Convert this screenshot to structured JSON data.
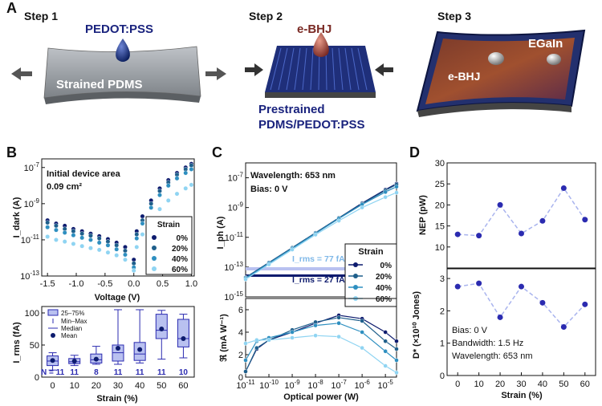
{
  "panel_a": {
    "label": "A",
    "step1": {
      "title": "Step 1",
      "material": "PEDOT:PSS",
      "substrate": "Strained PDMS"
    },
    "step2": {
      "title": "Step 2",
      "material": "e-BHJ",
      "substrate_l1": "Prestrained",
      "substrate_l2": "PDMS/PEDOT:PSS"
    },
    "step3": {
      "title": "Step 3",
      "contact": "EGaIn",
      "layer": "e-BHJ"
    }
  },
  "colors": {
    "s0": "#0d1b6e",
    "s20": "#1f5f8b",
    "s40": "#2e8fc0",
    "s60": "#8fd4f2",
    "accent": "#2b2bb0",
    "box": "#b9c1f0"
  },
  "chart_data": [
    {
      "panel": "B-top",
      "type": "scatter",
      "title": "Initial device area",
      "title2": "0.09 cm²",
      "xlabel": "Voltage (V)",
      "ylabel": "I_dark (A)",
      "yscale": "log",
      "xlim": [
        -1.6,
        1.05
      ],
      "ylim": [
        1e-13,
        3e-07
      ],
      "xticks": [
        "-1.5",
        "-1.0",
        "-0.5",
        "0.0",
        "0.5",
        "1.0"
      ],
      "yticks": [
        "10^-13",
        "10^-11",
        "10^-9",
        "10^-7"
      ],
      "legend_title": "Strain",
      "series": [
        {
          "name": "0%",
          "x": [
            -1.5,
            -1.35,
            -1.2,
            -1.05,
            -0.9,
            -0.75,
            -0.6,
            -0.45,
            -0.3,
            -0.15,
            0.0,
            0.05,
            0.15,
            0.3,
            0.45,
            0.6,
            0.75,
            0.9,
            1.0
          ],
          "y": [
            1.2e-10,
            8e-11,
            6e-11,
            4e-11,
            3e-11,
            2.2e-11,
            1.6e-11,
            1.1e-11,
            7e-12,
            4e-12,
            8e-13,
            3e-11,
            2e-10,
            1.5e-09,
            7e-09,
            2e-08,
            5e-08,
            1e-07,
            1.6e-07
          ]
        },
        {
          "name": "20%",
          "x": [
            -1.5,
            -1.35,
            -1.2,
            -1.05,
            -0.9,
            -0.75,
            -0.6,
            -0.45,
            -0.3,
            -0.15,
            0.0,
            0.05,
            0.15,
            0.3,
            0.45,
            0.6,
            0.75,
            0.9,
            1.0
          ],
          "y": [
            9e-11,
            6e-11,
            4e-11,
            3e-11,
            2.2e-11,
            1.7e-11,
            1.2e-11,
            8e-12,
            5e-12,
            2.5e-12,
            5e-13,
            2e-11,
            1.2e-10,
            1e-09,
            5e-09,
            1.5e-08,
            4e-08,
            8e-08,
            1.3e-07
          ]
        },
        {
          "name": "40%",
          "x": [
            -1.5,
            -1.35,
            -1.2,
            -1.05,
            -0.9,
            -0.75,
            -0.6,
            -0.45,
            -0.3,
            -0.15,
            0.0,
            0.05,
            0.15,
            0.3,
            0.45,
            0.6,
            0.75,
            0.9,
            1.0
          ],
          "y": [
            5e-11,
            3.5e-11,
            2.5e-11,
            1.8e-11,
            1.3e-11,
            1e-11,
            7e-12,
            5e-12,
            3e-12,
            1.5e-12,
            3e-13,
            1.2e-11,
            8e-11,
            6e-10,
            3e-09,
            1e-08,
            2.5e-08,
            5e-08,
            8e-08
          ]
        },
        {
          "name": "60%",
          "x": [
            -1.5,
            -1.35,
            -1.2,
            -1.05,
            -0.9,
            -0.75,
            -0.6,
            -0.45,
            -0.3,
            -0.15,
            0.0,
            0.05,
            0.15,
            0.3,
            0.45,
            0.6,
            0.75,
            0.9,
            1.0
          ],
          "y": [
            1.5e-11,
            1e-11,
            8e-12,
            6e-12,
            4.5e-12,
            3.5e-12,
            2.8e-12,
            2e-12,
            1.4e-12,
            8e-13,
            2e-13,
            4e-12,
            2e-11,
            1.2e-10,
            5e-10,
            1.5e-09,
            3.5e-09,
            7e-09,
            1.1e-08
          ]
        }
      ]
    },
    {
      "panel": "B-bottom",
      "type": "box",
      "xlabel": "Strain (%)",
      "ylabel": "I_rms (fA)",
      "ylim": [
        0,
        110
      ],
      "yticks": [
        "0",
        "50",
        "100"
      ],
      "categories": [
        "0",
        "10",
        "20",
        "30",
        "40",
        "50",
        "60"
      ],
      "n_values": [
        "N = 11",
        "11",
        "8",
        "11",
        "11",
        "11",
        "10"
      ],
      "legend": [
        "25–75%",
        "Min–Max",
        "Median",
        "Mean"
      ],
      "boxes": [
        {
          "min": 11,
          "q1": 18,
          "median": 25,
          "q3": 33,
          "max": 38,
          "mean": 26
        },
        {
          "min": 18,
          "q1": 21,
          "median": 24,
          "q3": 29,
          "max": 34,
          "mean": 25
        },
        {
          "min": 20,
          "q1": 22,
          "median": 27,
          "q3": 36,
          "max": 48,
          "mean": 28
        },
        {
          "min": 20,
          "q1": 25,
          "median": 38,
          "q3": 50,
          "max": 105,
          "mean": 45
        },
        {
          "min": 22,
          "q1": 26,
          "median": 36,
          "q3": 54,
          "max": 105,
          "mean": 43
        },
        {
          "min": 28,
          "q1": 60,
          "median": 73,
          "q3": 98,
          "max": 104,
          "mean": 75
        },
        {
          "min": 30,
          "q1": 47,
          "median": 60,
          "q3": 90,
          "max": 98,
          "mean": 60
        }
      ]
    },
    {
      "panel": "C-top",
      "type": "line",
      "annotations": [
        "Wavelength: 653 nm",
        "Bias: 0 V"
      ],
      "ylabel": "I_ph (A)",
      "xscale": "log",
      "yscale": "log",
      "xlim": [
        1e-11,
        3e-05
      ],
      "ylim": [
        1e-15,
        1e-06
      ],
      "yticks": [
        "10^-15",
        "10^-13",
        "10^-11",
        "10^-9",
        "10^-7"
      ],
      "noise_labels": [
        "I_rms = 77 fA",
        "I_rms = 27 fA"
      ],
      "noise_levels": [
        7.7e-14,
        2.7e-14
      ],
      "legend_title": "Strain",
      "series": [
        {
          "name": "0%",
          "x": [
            1e-11,
            1e-10,
            1e-09,
            1e-08,
            1e-07,
            1e-06,
            1e-05,
            3e-05
          ],
          "y": [
            2e-14,
            2e-13,
            2e-12,
            2e-11,
            2e-10,
            2e-09,
            1.6e-08,
            4e-08
          ]
        },
        {
          "name": "20%",
          "x": [
            1e-11,
            1e-10,
            1e-09,
            1e-08,
            1e-07,
            1e-06,
            1e-05,
            3e-05
          ],
          "y": [
            2e-14,
            2e-13,
            2e-12,
            2e-11,
            2e-10,
            1.8e-09,
            1.4e-08,
            3.5e-08
          ]
        },
        {
          "name": "40%",
          "x": [
            1e-11,
            1e-10,
            1e-09,
            1e-08,
            1e-07,
            1e-06,
            1e-05,
            3e-05
          ],
          "y": [
            1.8e-14,
            1.8e-13,
            1.8e-12,
            1.8e-11,
            1.8e-10,
            1.6e-09,
            1.1e-08,
            2.5e-08
          ]
        },
        {
          "name": "60%",
          "x": [
            1e-11,
            1e-10,
            1e-09,
            1e-08,
            1e-07,
            1e-06,
            1e-05,
            3e-05
          ],
          "y": [
            1.5e-14,
            1.5e-13,
            1.5e-12,
            1.5e-11,
            1.3e-10,
            1e-09,
            5e-09,
            1e-08
          ]
        }
      ]
    },
    {
      "panel": "C-bottom",
      "type": "line",
      "xlabel": "Optical power (W)",
      "ylabel": "ℜ (mA W⁻¹)",
      "xscale": "log",
      "xlim": [
        1e-11,
        3e-05
      ],
      "ylim": [
        0,
        7
      ],
      "xticks": [
        "10^-11",
        "10^-10",
        "10^-9",
        "10^-8",
        "10^-7",
        "10^-6",
        "10^-5"
      ],
      "yticks": [
        "0",
        "2",
        "4",
        "6"
      ],
      "series": [
        {
          "name": "0%",
          "x": [
            1e-11,
            3e-11,
            1e-10,
            1e-09,
            1e-08,
            1e-07,
            1e-06,
            1e-05,
            3e-05
          ],
          "y": [
            0.5,
            2.5,
            3.3,
            4.0,
            4.8,
            5.5,
            5.2,
            4.0,
            3.2
          ]
        },
        {
          "name": "20%",
          "x": [
            1e-11,
            3e-11,
            1e-10,
            1e-09,
            1e-08,
            1e-07,
            1e-06,
            1e-05,
            3e-05
          ],
          "y": [
            0.5,
            2.6,
            3.3,
            4.2,
            4.9,
            5.3,
            5.0,
            3.2,
            2.5
          ]
        },
        {
          "name": "40%",
          "x": [
            1e-11,
            3e-11,
            1e-10,
            1e-09,
            1e-08,
            1e-07,
            1e-06,
            1e-05,
            3e-05
          ],
          "y": [
            1.5,
            3.2,
            3.5,
            4.0,
            4.6,
            4.8,
            4.0,
            2.3,
            1.5
          ]
        },
        {
          "name": "60%",
          "x": [
            1e-11,
            3e-11,
            1e-10,
            1e-09,
            1e-08,
            1e-07,
            1e-06,
            1e-05,
            3e-05
          ],
          "y": [
            3.0,
            3.3,
            3.3,
            3.5,
            3.7,
            3.6,
            2.6,
            1.0,
            0.4
          ]
        }
      ]
    },
    {
      "panel": "D-top",
      "type": "line",
      "ylabel": "NEP (pW)",
      "ylim": [
        5,
        30
      ],
      "yticks": [
        "10",
        "15",
        "20",
        "25",
        "30"
      ],
      "x": [
        0,
        10,
        20,
        30,
        40,
        50,
        60
      ],
      "values": [
        13,
        12.7,
        20,
        13.2,
        16.2,
        24,
        16.5
      ]
    },
    {
      "panel": "D-bottom",
      "type": "line",
      "xlabel": "Strain (%)",
      "ylabel": "D* (×10¹⁰ Jones)",
      "ylim": [
        0,
        3.3
      ],
      "yticks": [
        "0",
        "1",
        "2",
        "3"
      ],
      "xticks": [
        "0",
        "10",
        "20",
        "30",
        "40",
        "50",
        "60"
      ],
      "annotations": [
        "Bias: 0 V",
        "Bandwidth: 1.5 Hz",
        "Wavelength: 653 nm"
      ],
      "x": [
        0,
        10,
        20,
        30,
        40,
        50,
        60
      ],
      "values": [
        2.75,
        2.85,
        1.8,
        2.75,
        2.25,
        1.5,
        2.2
      ]
    }
  ],
  "labels": {
    "b": "B",
    "c": "C",
    "d": "D"
  }
}
